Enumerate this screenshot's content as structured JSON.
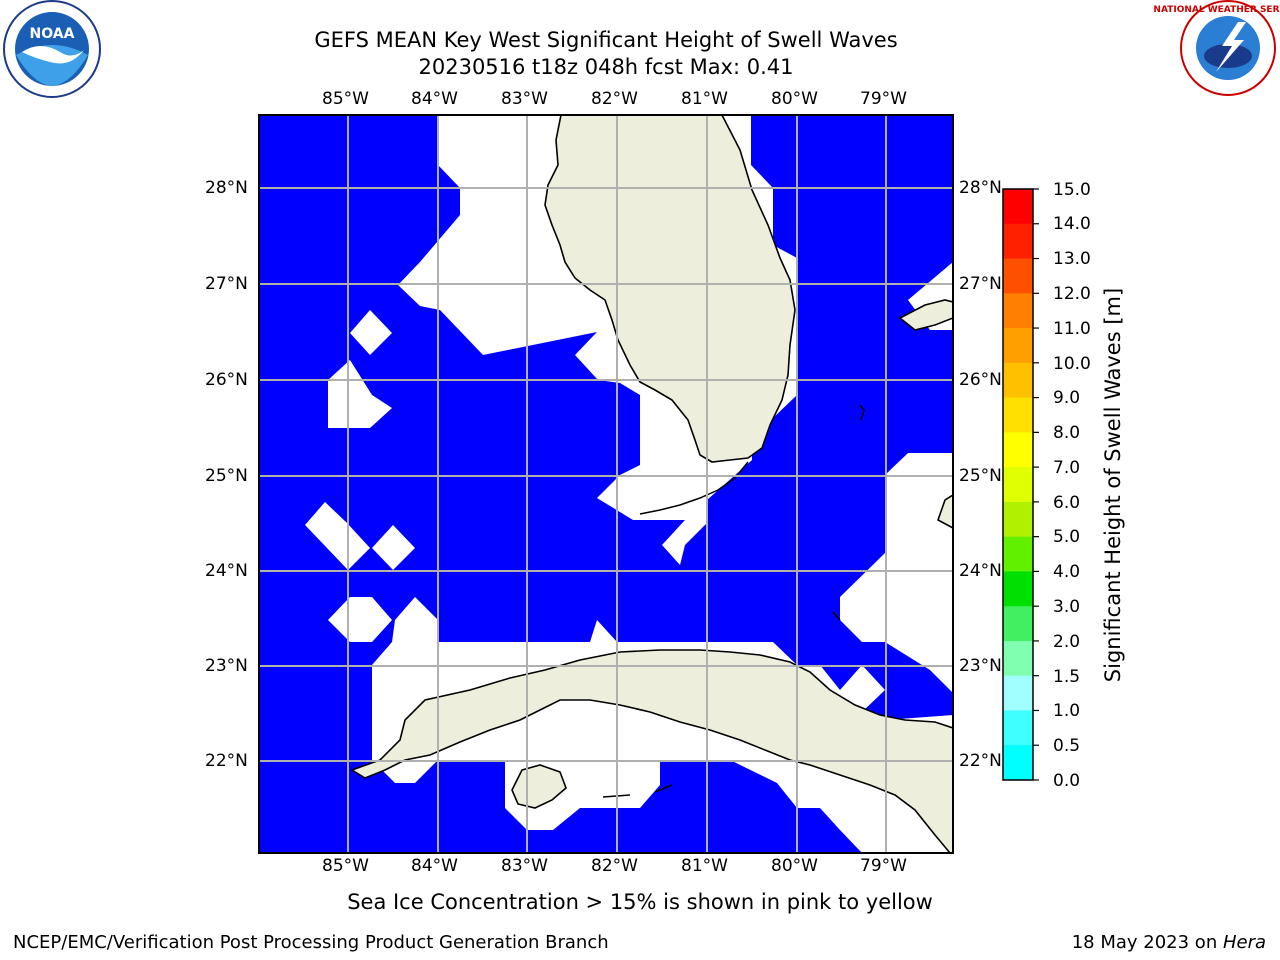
{
  "title": {
    "line1": "GEFS MEAN Key West Significant Height of Swell Waves",
    "line2": "20230516 t18z 048h fcst   Max: 0.41"
  },
  "map": {
    "lon_ticks": [
      "85°W",
      "84°W",
      "83°W",
      "82°W",
      "81°W",
      "80°W",
      "79°W"
    ],
    "lat_ticks": [
      "28°N",
      "27°N",
      "26°N",
      "25°N",
      "24°N",
      "23°N",
      "22°N"
    ],
    "ocean_color": "#0000ff",
    "land_color": "#eeeedd",
    "grid_color": "#b0b0b0"
  },
  "colorbar": {
    "label": "Significant Height of Swell Waves [m]",
    "tick_labels": [
      "15.0",
      "14.0",
      "13.0",
      "12.0",
      "11.0",
      "10.0",
      "9.0",
      "8.0",
      "7.0",
      "6.0",
      "5.0",
      "4.0",
      "3.0",
      "2.0",
      "1.5",
      "1.0",
      "0.5",
      "0.0"
    ],
    "colors": [
      "#ff0000",
      "#ff2000",
      "#ff5000",
      "#ff8000",
      "#ffa000",
      "#ffc000",
      "#ffe000",
      "#ffff00",
      "#e0ff00",
      "#b0f000",
      "#60f000",
      "#00e000",
      "#40f060",
      "#80ffb0",
      "#a0ffff",
      "#40ffff",
      "#00ffff",
      "#0080ff",
      "#0000ff"
    ]
  },
  "caption": "Sea Ice Concentration > 15% is shown in pink to yellow",
  "footer": {
    "left": "NCEP/EMC/Verification Post Processing Product Generation Branch",
    "right_prefix": "18 May 2023 on ",
    "right_host": "Hera"
  },
  "logos": {
    "noaa": "NOAA",
    "nws": "NATIONAL WEATHER SERVICE"
  }
}
